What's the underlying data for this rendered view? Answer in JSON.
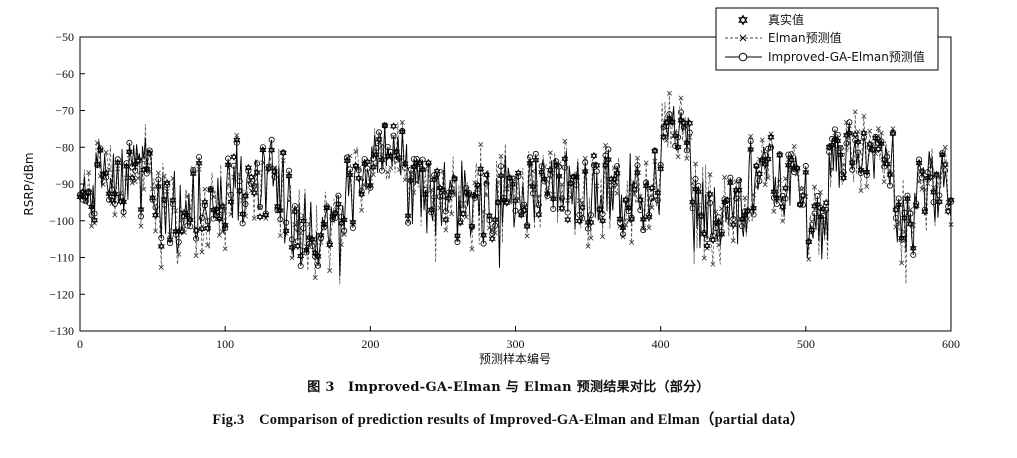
{
  "chart_data": {
    "type": "line",
    "x_range": [
      0,
      600
    ],
    "y_range": [
      -130,
      -50
    ],
    "x_ticks": [
      "0",
      "100",
      "200",
      "300",
      "400",
      "500",
      "600"
    ],
    "y_ticks": [
      "−50",
      "−60",
      "−70",
      "−80",
      "−90",
      "−100",
      "−110",
      "−120",
      "−130"
    ],
    "xlabel": "预测样本编号",
    "ylabel": "RSRP/dBm",
    "legend_position": "top-right",
    "legend": [
      "真实值",
      "Elman预测值",
      "Improved-GA-Elman预测值"
    ],
    "series": [
      {
        "name": "真实值",
        "marker": "hexagram",
        "line": "none"
      },
      {
        "name": "Elman预测值",
        "marker": "x",
        "line": "dashed"
      },
      {
        "name": "Improved-GA-Elman预测值",
        "marker": "circle",
        "line": "solid"
      }
    ],
    "segments": [
      {
        "x": [
          0,
          10
        ],
        "mean": -94,
        "amp": 7
      },
      {
        "x": [
          10,
          50
        ],
        "mean": -88,
        "amp": 9
      },
      {
        "x": [
          50,
          100
        ],
        "mean": -97,
        "amp": 10
      },
      {
        "x": [
          100,
          140
        ],
        "mean": -90,
        "amp": 10
      },
      {
        "x": [
          140,
          180
        ],
        "mean": -103,
        "amp": 9
      },
      {
        "x": [
          180,
          200
        ],
        "mean": -92,
        "amp": 9
      },
      {
        "x": [
          200,
          225
        ],
        "mean": -80,
        "amp": 6
      },
      {
        "x": [
          225,
          300
        ],
        "mean": -95,
        "amp": 11
      },
      {
        "x": [
          300,
          380
        ],
        "mean": -92,
        "amp": 10
      },
      {
        "x": [
          380,
          400
        ],
        "mean": -94,
        "amp": 9
      },
      {
        "x": [
          400,
          420
        ],
        "mean": -76,
        "amp": 5
      },
      {
        "x": [
          420,
          460
        ],
        "mean": -98,
        "amp": 10
      },
      {
        "x": [
          460,
          500
        ],
        "mean": -87,
        "amp": 10
      },
      {
        "x": [
          500,
          515
        ],
        "mean": -103,
        "amp": 8
      },
      {
        "x": [
          515,
          560
        ],
        "mean": -83,
        "amp": 7
      },
      {
        "x": [
          560,
          575
        ],
        "mean": -100,
        "amp": 9
      },
      {
        "x": [
          575,
          600
        ],
        "mean": -90,
        "amp": 9
      }
    ]
  },
  "captions": {
    "cn": "图 3　Improved-GA-Elman 与 Elman 预测结果对比（部分）",
    "en": "Fig.3　Comparison of prediction results of Improved-GA-Elman and Elman（partial data）"
  }
}
